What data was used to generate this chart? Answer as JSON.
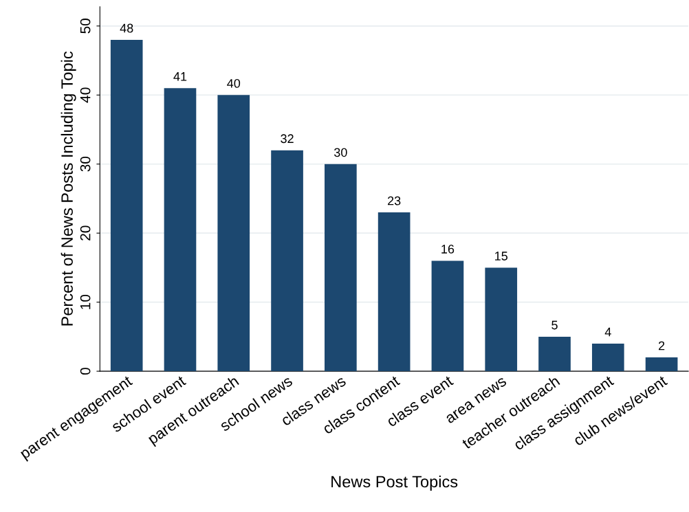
{
  "chart_data": {
    "type": "bar",
    "xlabel": "News Post Topics",
    "ylabel": "Percent of News Posts Including Topic",
    "categories": [
      "parent engagement",
      "school event",
      "parent outreach",
      "school news",
      "class news",
      "class content",
      "class event",
      "area news",
      "teacher outreach",
      "class assignment",
      "club news/event"
    ],
    "values": [
      48,
      41,
      40,
      32,
      30,
      23,
      16,
      15,
      5,
      4,
      2
    ],
    "color": "#1c4870",
    "ylim": [
      0,
      52.8
    ],
    "yticks": [
      0,
      10,
      20,
      30,
      40,
      50
    ],
    "grid": "y",
    "data_labels": true
  }
}
